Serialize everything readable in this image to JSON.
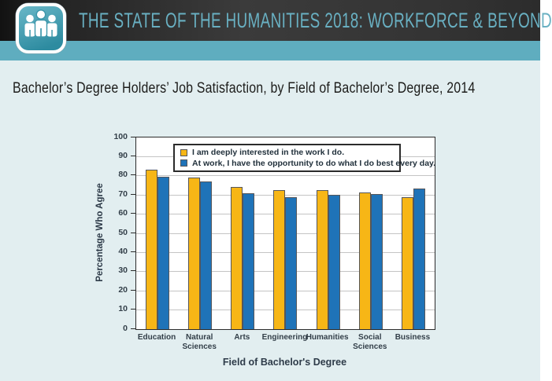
{
  "header": {
    "title": "THE STATE OF THE HUMANITIES 2018: WORKFORCE & BEYOND",
    "logo": "three-people-icon"
  },
  "subtitle": "Bachelor’s Degree Holders’ Job Satisfaction, by Field of Bachelor’s Degree, 2014",
  "colors": {
    "header_bg": "#333333",
    "header_text": "#69b0c2",
    "teal_strip": "#5fadbf",
    "page_bg": "#e2eef0",
    "series1_yellow": "#f7b616",
    "series2_blue": "#1f73b8",
    "bar_border": "#55565a",
    "gridline": "#c4c4c4",
    "axis_text": "#333f49"
  },
  "chart_data": {
    "type": "bar",
    "title": "Bachelor’s Degree Holders’ Job Satisfaction, by Field of Bachelor’s Degree, 2014",
    "categories": [
      "Education",
      "Natural Sciences",
      "Arts",
      "Engineering",
      "Humanities",
      "Social Sciences",
      "Business"
    ],
    "series": [
      {
        "name": "I am deeply interested in the work I do.",
        "color": "#f7b616",
        "values": [
          83,
          79,
          74,
          72.5,
          72.5,
          71.5,
          69
        ]
      },
      {
        "name": "At work, I have the opportunity to do what I do best every day.",
        "color": "#1f73b8",
        "values": [
          79.5,
          77,
          71,
          69,
          70,
          70.5,
          73.5
        ]
      }
    ],
    "xlabel": "Field of Bachelor's Degree",
    "ylabel": "Percentage Who Agree",
    "ylim": [
      0,
      100
    ],
    "ytick_interval": 10,
    "grid": true,
    "legend_position": "top-inside"
  }
}
